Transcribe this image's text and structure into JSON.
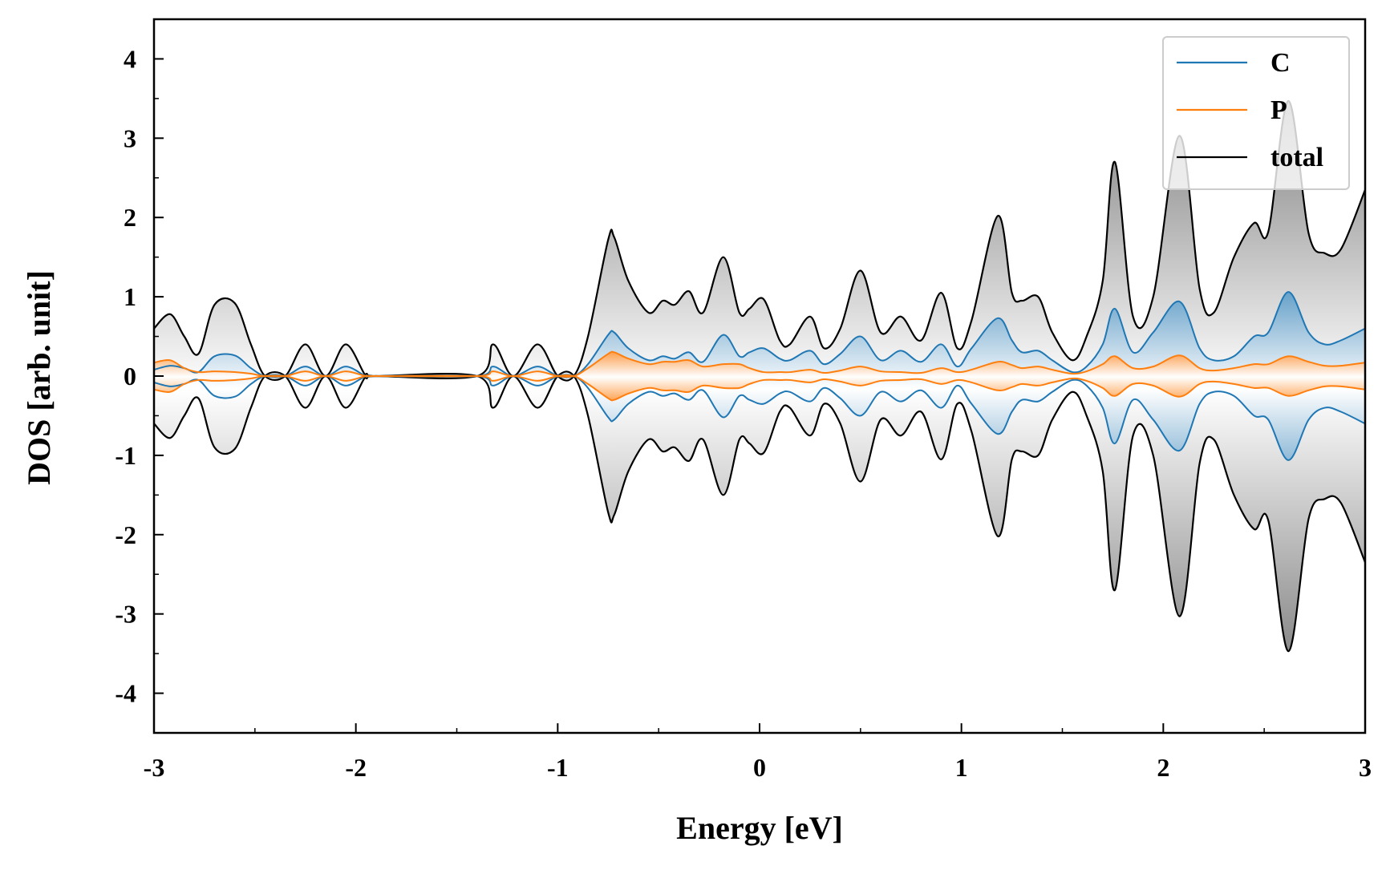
{
  "chart_data": {
    "type": "line",
    "title": "",
    "xlabel": "Energy [eV]",
    "ylabel": "DOS [arb. unit]",
    "xlim": [
      -3,
      3
    ],
    "ylim": [
      -4.5,
      4.5
    ],
    "xticks": [
      -3,
      -2,
      -1,
      0,
      1,
      2,
      3
    ],
    "xtick_labels": [
      "-3",
      "-2",
      "-1",
      "0",
      "1",
      "2",
      "3"
    ],
    "yticks": [
      -4,
      -3,
      -2,
      -1,
      0,
      1,
      2,
      3,
      4
    ],
    "ytick_labels": [
      "-4",
      "-3",
      "-2",
      "-1",
      "0",
      "1",
      "2",
      "3",
      "4"
    ],
    "grid": false,
    "legend": {
      "placement": "top-right",
      "entries": [
        "C",
        "P",
        "total"
      ]
    },
    "mirrored_about_zero": true,
    "series": [
      {
        "name": "C",
        "color": "#1f77b4",
        "x": [
          -3.0,
          -2.92,
          -2.85,
          -2.78,
          -2.7,
          -2.6,
          -2.52,
          -2.45,
          -2.35,
          -2.25,
          -2.15,
          -2.05,
          -1.95,
          -1.9,
          -1.4,
          -1.32,
          -1.22,
          -1.1,
          -1.0,
          -0.92,
          -0.85,
          -0.75,
          -0.72,
          -0.65,
          -0.55,
          -0.48,
          -0.42,
          -0.35,
          -0.28,
          -0.18,
          -0.1,
          -0.05,
          0.02,
          0.1,
          0.15,
          0.25,
          0.32,
          0.4,
          0.5,
          0.6,
          0.7,
          0.8,
          0.9,
          0.98,
          1.05,
          1.18,
          1.25,
          1.3,
          1.38,
          1.45,
          1.55,
          1.62,
          1.7,
          1.76,
          1.85,
          1.95,
          2.08,
          2.18,
          2.25,
          2.35,
          2.45,
          2.52,
          2.62,
          2.72,
          2.8,
          2.88,
          3.0
        ],
        "y": [
          0.08,
          0.13,
          0.1,
          0.05,
          0.25,
          0.26,
          0.1,
          0.0,
          0.0,
          0.12,
          0.0,
          0.12,
          0.0,
          0.0,
          0.0,
          0.12,
          0.0,
          0.12,
          0.0,
          0.0,
          0.15,
          0.52,
          0.55,
          0.35,
          0.2,
          0.25,
          0.22,
          0.3,
          0.18,
          0.52,
          0.25,
          0.3,
          0.35,
          0.22,
          0.2,
          0.32,
          0.15,
          0.28,
          0.5,
          0.2,
          0.32,
          0.18,
          0.4,
          0.12,
          0.35,
          0.73,
          0.45,
          0.3,
          0.32,
          0.2,
          0.05,
          0.12,
          0.4,
          0.85,
          0.3,
          0.55,
          0.94,
          0.35,
          0.2,
          0.25,
          0.5,
          0.55,
          1.06,
          0.55,
          0.4,
          0.45,
          0.6
        ]
      },
      {
        "name": "P",
        "color": "#ff7f0e",
        "x": [
          -3.0,
          -2.92,
          -2.85,
          -2.78,
          -2.7,
          -2.6,
          -2.52,
          -2.45,
          -2.35,
          -2.25,
          -2.15,
          -2.05,
          -1.95,
          -1.9,
          -1.4,
          -1.32,
          -1.22,
          -1.1,
          -1.0,
          -0.92,
          -0.85,
          -0.75,
          -0.72,
          -0.65,
          -0.55,
          -0.48,
          -0.42,
          -0.35,
          -0.28,
          -0.18,
          -0.1,
          -0.05,
          0.02,
          0.1,
          0.15,
          0.25,
          0.32,
          0.4,
          0.5,
          0.6,
          0.7,
          0.8,
          0.9,
          0.98,
          1.05,
          1.18,
          1.25,
          1.3,
          1.38,
          1.45,
          1.55,
          1.62,
          1.7,
          1.76,
          1.85,
          1.95,
          2.08,
          2.18,
          2.25,
          2.35,
          2.45,
          2.52,
          2.62,
          2.72,
          2.8,
          2.88,
          3.0
        ],
        "y": [
          0.17,
          0.2,
          0.1,
          0.05,
          0.06,
          0.05,
          0.03,
          0.0,
          0.0,
          0.06,
          0.0,
          0.06,
          0.0,
          0.0,
          0.0,
          0.06,
          0.0,
          0.06,
          0.0,
          0.0,
          0.1,
          0.28,
          0.3,
          0.22,
          0.15,
          0.18,
          0.18,
          0.2,
          0.12,
          0.15,
          0.15,
          0.1,
          0.05,
          0.05,
          0.05,
          0.08,
          0.04,
          0.07,
          0.12,
          0.06,
          0.05,
          0.04,
          0.1,
          0.05,
          0.08,
          0.18,
          0.14,
          0.1,
          0.12,
          0.08,
          0.03,
          0.06,
          0.15,
          0.25,
          0.1,
          0.12,
          0.26,
          0.1,
          0.07,
          0.1,
          0.15,
          0.15,
          0.25,
          0.18,
          0.13,
          0.13,
          0.17
        ]
      },
      {
        "name": "total",
        "color": "#000000",
        "x": [
          -3.0,
          -2.92,
          -2.85,
          -2.78,
          -2.7,
          -2.6,
          -2.52,
          -2.45,
          -2.35,
          -2.25,
          -2.15,
          -2.05,
          -1.95,
          -1.9,
          -1.4,
          -1.32,
          -1.22,
          -1.1,
          -1.0,
          -0.92,
          -0.85,
          -0.75,
          -0.72,
          -0.65,
          -0.55,
          -0.48,
          -0.42,
          -0.35,
          -0.28,
          -0.18,
          -0.1,
          -0.05,
          0.02,
          0.1,
          0.15,
          0.25,
          0.32,
          0.4,
          0.5,
          0.6,
          0.7,
          0.8,
          0.9,
          0.98,
          1.05,
          1.18,
          1.25,
          1.3,
          1.38,
          1.45,
          1.55,
          1.62,
          1.7,
          1.76,
          1.85,
          1.95,
          2.08,
          2.18,
          2.25,
          2.35,
          2.45,
          2.52,
          2.62,
          2.72,
          2.8,
          2.88,
          3.0
        ],
        "y": [
          0.6,
          0.78,
          0.5,
          0.28,
          0.9,
          0.92,
          0.4,
          0.0,
          0.0,
          0.4,
          0.0,
          0.4,
          0.0,
          0.0,
          0.0,
          0.4,
          0.0,
          0.4,
          0.0,
          0.0,
          0.5,
          1.72,
          1.75,
          1.2,
          0.8,
          0.95,
          0.9,
          1.07,
          0.8,
          1.5,
          0.8,
          0.85,
          0.97,
          0.45,
          0.4,
          0.75,
          0.35,
          0.6,
          1.33,
          0.55,
          0.75,
          0.45,
          1.05,
          0.35,
          0.7,
          2.02,
          1.05,
          0.95,
          1.0,
          0.55,
          0.2,
          0.5,
          1.2,
          2.7,
          0.75,
          1.0,
          3.03,
          1.1,
          0.8,
          1.5,
          1.93,
          1.82,
          3.47,
          1.8,
          1.55,
          1.6,
          2.35
        ]
      }
    ]
  }
}
